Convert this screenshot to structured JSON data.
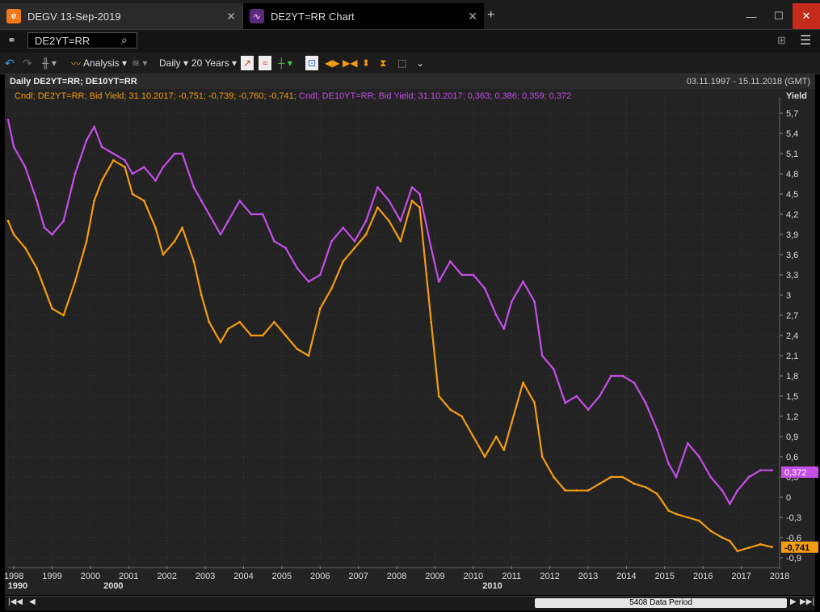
{
  "tabs": [
    {
      "label": "DEGV 13-Sep-2019"
    },
    {
      "label": "DE2YT=RR Chart"
    }
  ],
  "command": {
    "value": "DE2YT=RR"
  },
  "toolbar": {
    "analysis": "Analysis",
    "interval": "Daily",
    "range": "20 Years"
  },
  "header": {
    "title": "Daily DE2YT=RR; DE10YT=RR",
    "date_range": "03.11.1997 - 15.11.2018 (GMT)"
  },
  "legend": {
    "s1": "Cndl; DE2YT=RR; Bid Yield; 31.10.2017; -0,751; -0,739; -0,760; -0,741;",
    "s2": "Cndl; DE10YT=RR; Bid Yield; 31.10.2017; 0,363; 0,386; 0,359; 0,372"
  },
  "scrollbar": {
    "label": "5408 Data Period"
  },
  "colors": {
    "de2y": "#f39c12",
    "de10y": "#c44fe6",
    "bg": "#232323",
    "grid": "#3a3a3a"
  },
  "chart_data": {
    "type": "line",
    "title": "Daily DE2YT=RR; DE10YT=RR",
    "ylabel": "Yield",
    "ylim": [
      -0.9,
      5.7
    ],
    "xlim": [
      1997.85,
      2018.0
    ],
    "yticks": [
      "5,7",
      "5,4",
      "5,1",
      "4,8",
      "4,5",
      "4,2",
      "3,9",
      "3,6",
      "3,3",
      "3",
      "2,7",
      "2,4",
      "2,1",
      "1,8",
      "1,5",
      "1,2",
      "0,9",
      "0,6",
      "0,3",
      "0",
      "-0,3",
      "-0,6",
      "-0,9"
    ],
    "xticks": [
      "1998",
      "1999",
      "2000",
      "2001",
      "2002",
      "2003",
      "2004",
      "2005",
      "2006",
      "2007",
      "2008",
      "2009",
      "2010",
      "2011",
      "2012",
      "2013",
      "2014",
      "2015",
      "2016",
      "2017",
      "2018"
    ],
    "decades": [
      "1990",
      "2000",
      "2010"
    ],
    "last_values": {
      "de2y": "-0,741",
      "de10y": "0,372"
    },
    "series": [
      {
        "name": "DE10YT=RR",
        "color": "#c44fe6",
        "x": [
          1997.85,
          1998.0,
          1998.3,
          1998.6,
          1998.8,
          1999.0,
          1999.3,
          1999.6,
          1999.9,
          2000.1,
          2000.3,
          2000.6,
          2000.9,
          2001.1,
          2001.4,
          2001.7,
          2001.9,
          2002.2,
          2002.4,
          2002.7,
          2002.9,
          2003.1,
          2003.4,
          2003.6,
          2003.9,
          2004.2,
          2004.5,
          2004.8,
          2005.1,
          2005.4,
          2005.7,
          2006.0,
          2006.3,
          2006.6,
          2006.9,
          2007.2,
          2007.5,
          2007.8,
          2008.1,
          2008.4,
          2008.6,
          2008.9,
          2009.1,
          2009.4,
          2009.7,
          2010.0,
          2010.3,
          2010.6,
          2010.8,
          2011.0,
          2011.3,
          2011.6,
          2011.8,
          2012.1,
          2012.4,
          2012.7,
          2013.0,
          2013.3,
          2013.6,
          2013.9,
          2014.2,
          2014.5,
          2014.8,
          2015.1,
          2015.3,
          2015.6,
          2015.9,
          2016.2,
          2016.5,
          2016.7,
          2016.9,
          2017.2,
          2017.5,
          2017.8
        ],
        "y": [
          5.6,
          5.2,
          4.9,
          4.4,
          4.0,
          3.9,
          4.1,
          4.8,
          5.3,
          5.5,
          5.2,
          5.1,
          5.0,
          4.8,
          4.9,
          4.7,
          4.9,
          5.1,
          5.1,
          4.6,
          4.4,
          4.2,
          3.9,
          4.1,
          4.4,
          4.2,
          4.2,
          3.8,
          3.7,
          3.4,
          3.2,
          3.3,
          3.8,
          4.0,
          3.8,
          4.1,
          4.6,
          4.4,
          4.1,
          4.6,
          4.5,
          3.7,
          3.2,
          3.5,
          3.3,
          3.3,
          3.1,
          2.7,
          2.5,
          2.9,
          3.2,
          2.9,
          2.1,
          1.9,
          1.4,
          1.5,
          1.3,
          1.5,
          1.8,
          1.8,
          1.7,
          1.4,
          1.0,
          0.5,
          0.3,
          0.8,
          0.6,
          0.3,
          0.1,
          -0.1,
          0.1,
          0.3,
          0.4,
          0.4
        ]
      },
      {
        "name": "DE2YT=RR",
        "color": "#f39c12",
        "x": [
          1997.85,
          1998.0,
          1998.3,
          1998.6,
          1998.8,
          1999.0,
          1999.3,
          1999.6,
          1999.9,
          2000.1,
          2000.3,
          2000.6,
          2000.9,
          2001.1,
          2001.4,
          2001.7,
          2001.9,
          2002.2,
          2002.4,
          2002.7,
          2002.9,
          2003.1,
          2003.4,
          2003.6,
          2003.9,
          2004.2,
          2004.5,
          2004.8,
          2005.1,
          2005.4,
          2005.7,
          2006.0,
          2006.3,
          2006.6,
          2006.9,
          2007.2,
          2007.5,
          2007.8,
          2008.1,
          2008.4,
          2008.6,
          2008.9,
          2009.1,
          2009.4,
          2009.7,
          2010.0,
          2010.3,
          2010.6,
          2010.8,
          2011.0,
          2011.3,
          2011.6,
          2011.8,
          2012.1,
          2012.4,
          2012.7,
          2013.0,
          2013.3,
          2013.6,
          2013.9,
          2014.2,
          2014.5,
          2014.8,
          2015.1,
          2015.3,
          2015.6,
          2015.9,
          2016.2,
          2016.5,
          2016.7,
          2016.9,
          2017.2,
          2017.5,
          2017.8
        ],
        "y": [
          4.1,
          3.9,
          3.7,
          3.4,
          3.1,
          2.8,
          2.7,
          3.2,
          3.8,
          4.4,
          4.7,
          5.0,
          4.9,
          4.5,
          4.4,
          4.0,
          3.6,
          3.8,
          4.0,
          3.5,
          3.0,
          2.6,
          2.3,
          2.5,
          2.6,
          2.4,
          2.4,
          2.6,
          2.4,
          2.2,
          2.1,
          2.8,
          3.1,
          3.5,
          3.7,
          3.9,
          4.3,
          4.1,
          3.8,
          4.4,
          4.3,
          2.6,
          1.5,
          1.3,
          1.2,
          0.9,
          0.6,
          0.9,
          0.7,
          1.1,
          1.7,
          1.4,
          0.6,
          0.3,
          0.1,
          0.1,
          0.1,
          0.2,
          0.3,
          0.3,
          0.2,
          0.15,
          0.05,
          -0.2,
          -0.25,
          -0.3,
          -0.35,
          -0.5,
          -0.6,
          -0.65,
          -0.8,
          -0.75,
          -0.7,
          -0.74
        ]
      }
    ]
  }
}
